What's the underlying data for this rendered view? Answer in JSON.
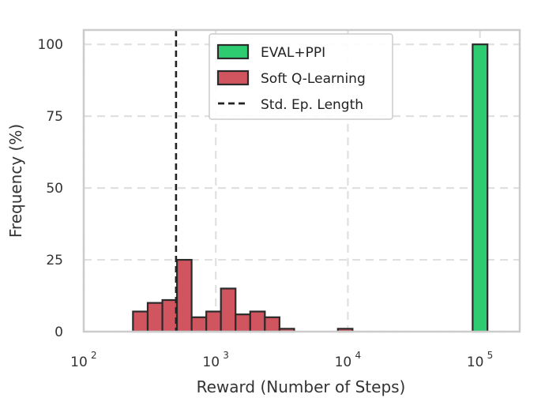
{
  "chart_data": {
    "type": "bar",
    "title": "",
    "xlabel": "Reward (Number of Steps)",
    "ylabel": "Frequency (%)",
    "x_scale": "log",
    "xlim": [
      100,
      200000
    ],
    "ylim": [
      0,
      105
    ],
    "x_tick_values": [
      100,
      1000,
      10000,
      100000
    ],
    "x_ticks": [
      {
        "base": "10",
        "exp": "2"
      },
      {
        "base": "10",
        "exp": "3"
      },
      {
        "base": "10",
        "exp": "4"
      },
      {
        "base": "10",
        "exp": "5"
      }
    ],
    "y_ticks": [
      0,
      25,
      50,
      75,
      100
    ],
    "y_tick_labels": [
      "0",
      "25",
      "50",
      "75",
      "100"
    ],
    "grid": true,
    "legend_position": "top-center",
    "series": [
      {
        "name": "EVAL+PPI",
        "color": "#2ecc71",
        "bins": [
          {
            "x0": 88000,
            "x1": 114000,
            "value": 100
          }
        ]
      },
      {
        "name": "Soft Q-Learning",
        "color": "#d0555f",
        "bins": [
          {
            "x0": 236,
            "x1": 305,
            "value": 7
          },
          {
            "x0": 305,
            "x1": 394,
            "value": 10
          },
          {
            "x0": 394,
            "x1": 508,
            "value": 11
          },
          {
            "x0": 508,
            "x1": 656,
            "value": 25
          },
          {
            "x0": 656,
            "x1": 847,
            "value": 5
          },
          {
            "x0": 847,
            "x1": 1093,
            "value": 7
          },
          {
            "x0": 1093,
            "x1": 1411,
            "value": 15
          },
          {
            "x0": 1411,
            "x1": 1822,
            "value": 6
          },
          {
            "x0": 1822,
            "x1": 2352,
            "value": 7
          },
          {
            "x0": 2352,
            "x1": 3036,
            "value": 5
          },
          {
            "x0": 3036,
            "x1": 3920,
            "value": 1
          },
          {
            "x0": 8400,
            "x1": 10845,
            "value": 1
          }
        ]
      }
    ],
    "reference_lines": [
      {
        "name": "Std. Ep. Length",
        "x": 500,
        "style": "dashed",
        "color": "#222222"
      }
    ],
    "edge_color": "#2b2b2b",
    "grid_color": "#e0e0e0",
    "frame_color": "#cccccc"
  }
}
